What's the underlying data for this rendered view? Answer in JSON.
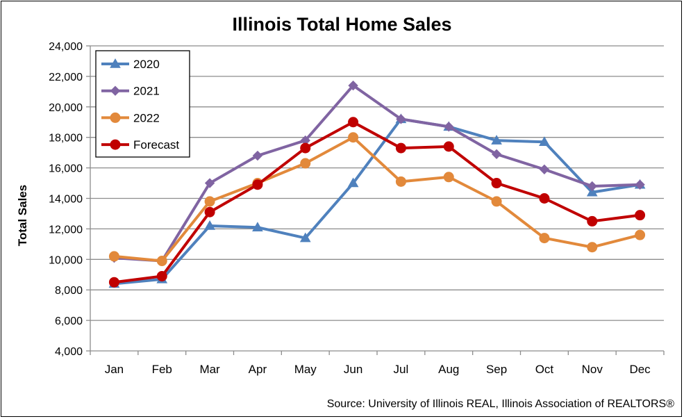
{
  "chart_data": {
    "type": "line",
    "title": "Illinois Total Home Sales",
    "xlabel": "",
    "ylabel": "Total  Sales",
    "ylim": [
      4000,
      24000
    ],
    "yticks": [
      "4,000",
      "6,000",
      "8,000",
      "10,000",
      "12,000",
      "14,000",
      "16,000",
      "18,000",
      "20,000",
      "22,000",
      "24,000"
    ],
    "ytick_values": [
      4000,
      6000,
      8000,
      10000,
      12000,
      14000,
      16000,
      18000,
      20000,
      22000,
      24000
    ],
    "categories": [
      "Jan",
      "Feb",
      "Mar",
      "Apr",
      "May",
      "Jun",
      "Jul",
      "Aug",
      "Sep",
      "Oct",
      "Nov",
      "Dec"
    ],
    "grid": "horizontal",
    "legend_position": "top-left",
    "series": [
      {
        "name": "2020",
        "color": "#4F81BD",
        "marker": "triangle",
        "values": [
          8400,
          8700,
          12200,
          12100,
          11400,
          15000,
          19200,
          18700,
          17800,
          17700,
          14400,
          14900
        ]
      },
      {
        "name": "2021",
        "color": "#8064A2",
        "marker": "diamond",
        "values": [
          10100,
          9900,
          15000,
          16800,
          17800,
          21400,
          19200,
          18700,
          16900,
          15900,
          14800,
          14900
        ]
      },
      {
        "name": "2022",
        "color": "#E2893B",
        "marker": "circle",
        "values": [
          10200,
          9900,
          13800,
          15000,
          16300,
          18000,
          15100,
          15400,
          13800,
          11400,
          10800,
          11600
        ]
      },
      {
        "name": "Forecast",
        "color": "#C00000",
        "marker": "circle",
        "values": [
          8500,
          8900,
          13100,
          14900,
          17300,
          19000,
          17300,
          17400,
          15000,
          14000,
          12500,
          12900
        ]
      }
    ]
  },
  "source": "Source: University of Illinois REAL, Illinois Association of REALTORS®"
}
